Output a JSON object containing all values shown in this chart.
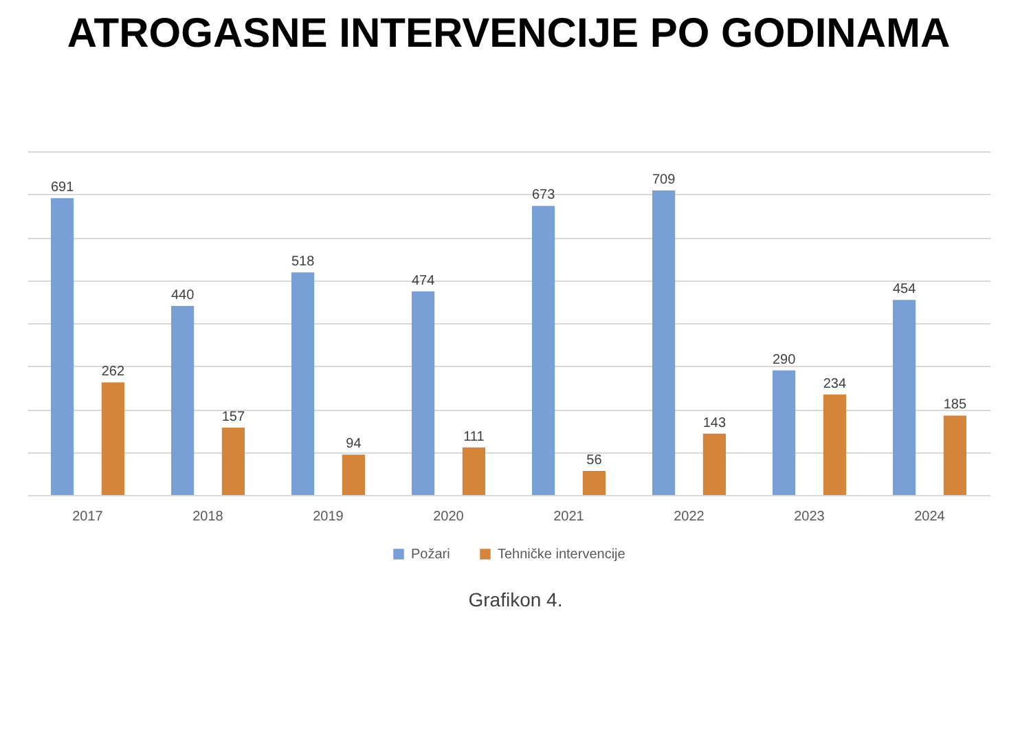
{
  "chart_data": {
    "type": "bar",
    "title": "ATROGASNE INTERVENCIJE  PO GODINAMA",
    "categories": [
      "2017",
      "2018",
      "2019",
      "2020",
      "2021",
      "2022",
      "2023",
      "2024"
    ],
    "series": [
      {
        "name": "Požari",
        "color": "#789fd6",
        "values": [
          691,
          440,
          518,
          474,
          673,
          709,
          290,
          454
        ]
      },
      {
        "name": "Tehničke intervencije",
        "color": "#d5843b",
        "values": [
          262,
          157,
          94,
          111,
          56,
          143,
          234,
          185
        ]
      }
    ],
    "ylim": [
      0,
      800
    ],
    "yticks": [
      {
        "value": 0,
        "label": null
      },
      {
        "value": 100,
        "label": null
      },
      {
        "value": 200,
        "label": null
      },
      {
        "value": 300,
        "label": null
      },
      {
        "value": 400,
        "label": null
      },
      {
        "value": 500,
        "label": null
      },
      {
        "value": 600,
        "label": null
      },
      {
        "value": 700,
        "label": null
      },
      {
        "value": 800,
        "label": null
      }
    ],
    "tick_labels": "x",
    "grid": "y",
    "legend": "bottom",
    "data_labels": true,
    "annotations": [
      "Grafikon 4."
    ]
  }
}
